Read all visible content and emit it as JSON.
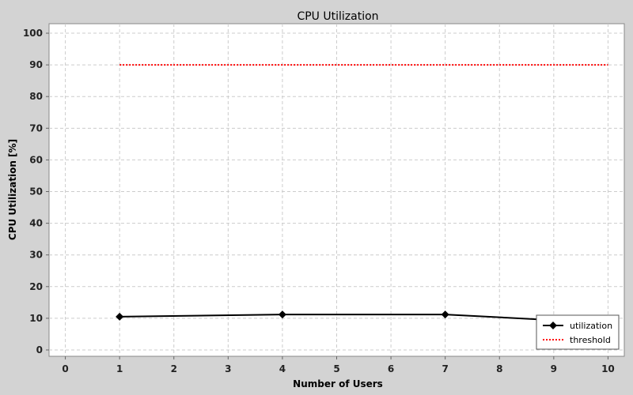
{
  "chart_data": {
    "type": "line",
    "title": "CPU Utilization",
    "xlabel": "Number of Users",
    "ylabel": "CPU Utilization [%]",
    "xlim": [
      -0.3,
      10.3
    ],
    "ylim": [
      -2,
      103
    ],
    "xticks": [
      0,
      1,
      2,
      3,
      4,
      5,
      6,
      7,
      8,
      9,
      10
    ],
    "yticks": [
      0,
      10,
      20,
      30,
      40,
      50,
      60,
      70,
      80,
      90,
      100
    ],
    "grid": true,
    "legend_position": "bottom-right",
    "series": [
      {
        "name": "utilization",
        "color": "#000000",
        "style": "solid",
        "marker": "diamond",
        "x": [
          1,
          4,
          7,
          10
        ],
        "y": [
          10.5,
          11.2,
          11.2,
          8.5
        ]
      },
      {
        "name": "threshold",
        "color": "#ff0000",
        "style": "dotted",
        "marker": "none",
        "x": [
          1,
          10
        ],
        "y": [
          90,
          90
        ]
      }
    ]
  }
}
